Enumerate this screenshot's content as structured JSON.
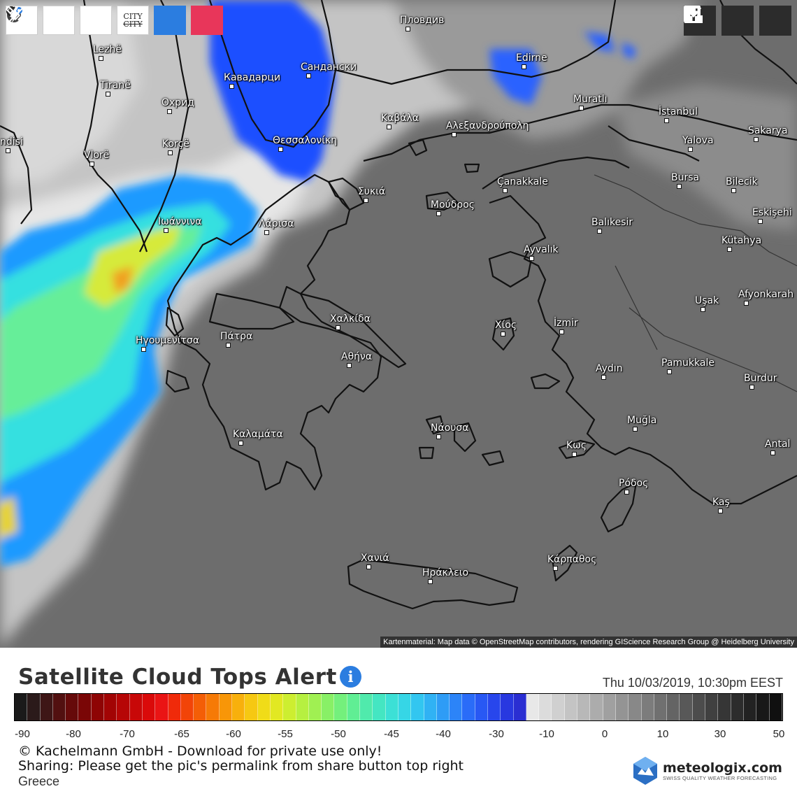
{
  "toolbar": {
    "city_label_top": "CITY",
    "city_label_bottom": "CITY"
  },
  "colors": {
    "land_gray": "#6c6c6c",
    "cloud_white": "#dcdcdc",
    "cloud_blue": "#1e55ff",
    "cloud_cyan": "#33ddee",
    "cloud_yellow": "#e6e62a",
    "lightning_button": "#2b7de0",
    "satellite_button": "#e8365a"
  },
  "cities": [
    {
      "name": "Пловдив"
    },
    {
      "name": "Lezhë"
    },
    {
      "name": "Tiranë"
    },
    {
      "name": "Кавадарци"
    },
    {
      "name": "Сандански"
    },
    {
      "name": "Edirne"
    },
    {
      "name": "Охрид"
    },
    {
      "name": "Muratlı"
    },
    {
      "name": "İstanbul"
    },
    {
      "name": "Καβάλα"
    },
    {
      "name": "Αλεξανδρούπολη"
    },
    {
      "name": "Sakarya"
    },
    {
      "name": "ndisi"
    },
    {
      "name": "Korçë"
    },
    {
      "name": "Θεσσαλονίκη"
    },
    {
      "name": "Yalova"
    },
    {
      "name": "Vlorë"
    },
    {
      "name": "Bursa"
    },
    {
      "name": "Bilecik"
    },
    {
      "name": "Çanakkale"
    },
    {
      "name": "Συκιά"
    },
    {
      "name": "Μούδρος"
    },
    {
      "name": "Eskişehi"
    },
    {
      "name": "Ιωάννινα"
    },
    {
      "name": "Λάρισα"
    },
    {
      "name": "Balıkesir"
    },
    {
      "name": "Kütahya"
    },
    {
      "name": "Ayvalık"
    },
    {
      "name": "Afyonkarah"
    },
    {
      "name": "Uşak"
    },
    {
      "name": "Χαλκίδα"
    },
    {
      "name": "Χίος"
    },
    {
      "name": "İzmir"
    },
    {
      "name": "Ηγουμενίτσα"
    },
    {
      "name": "Πάτρα"
    },
    {
      "name": "Αθήνα"
    },
    {
      "name": "Pamukkale"
    },
    {
      "name": "Aydın"
    },
    {
      "name": "Burdur"
    },
    {
      "name": "Νάουσα"
    },
    {
      "name": "Muğla"
    },
    {
      "name": "Καλαμάτα"
    },
    {
      "name": "Κως"
    },
    {
      "name": "Antal"
    },
    {
      "name": "Ρόδος"
    },
    {
      "name": "Kaş"
    },
    {
      "name": "Χανιά"
    },
    {
      "name": "Κάρπαθος"
    },
    {
      "name": "Ηράκλειο"
    }
  ],
  "attribution": "Kartenmaterial: Map data © OpenStreetMap contributors, rendering GIScience Research Group @ Heidelberg University",
  "legend": {
    "title": "Satellite Cloud Tops Alert",
    "info": "i",
    "datetime": "Thu 10/03/2019, 10:30pm EEST",
    "scale_colors": [
      "#1a1a1a",
      "#2b1a1a",
      "#3e1616",
      "#521010",
      "#660a0a",
      "#7a0606",
      "#8e0404",
      "#a20404",
      "#b60606",
      "#c80808",
      "#da0a0a",
      "#ea1414",
      "#f02a0a",
      "#f24408",
      "#f45e06",
      "#f67a06",
      "#f89608",
      "#f8b00c",
      "#f6c812",
      "#f0dc18",
      "#e2e822",
      "#cdee30",
      "#b6f040",
      "#a0f052",
      "#88f066",
      "#74f07c",
      "#60ee94",
      "#50eaac",
      "#44e6c2",
      "#3ce0d6",
      "#36d6e6",
      "#32c6f0",
      "#30b2f4",
      "#2e9cf6",
      "#2c84f8",
      "#2a6cf8",
      "#2858f4",
      "#2846ec",
      "#2838e0",
      "#2a2ed2",
      "#e8e8e8",
      "#dcdcdc",
      "#d0d0d0",
      "#c4c4c4",
      "#b8b8b8",
      "#acacac",
      "#a0a0a0",
      "#949494",
      "#888888",
      "#7c7c7c",
      "#707070",
      "#646464",
      "#585858",
      "#4c4c4c",
      "#404040",
      "#363636",
      "#2c2c2c",
      "#222222",
      "#181818",
      "#101010"
    ],
    "ticks": [
      "-90",
      "-80",
      "-70",
      "-65",
      "-60",
      "-55",
      "-50",
      "-45",
      "-40",
      "-30",
      "-10",
      "0",
      "10",
      "30",
      "50"
    ],
    "copyright": "© Kachelmann GmbH - Download for private use only!",
    "sharing": "Sharing: Please get the pic's permalink from share button top right",
    "region": "Greece",
    "logo_name": "meteologix.com",
    "logo_sub": "SWISS QUALITY WEATHER FORECASTING"
  }
}
